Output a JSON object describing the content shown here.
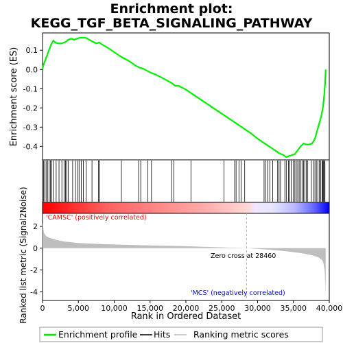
{
  "title_line1": "Enrichment plot:",
  "title_line2": "KEGG_TGF_BETA_SIGNALING_PATHWAY",
  "es_panel": {
    "ylabel": "Enrichment score (ES)",
    "y_ticks": [
      "0.1",
      "0.0",
      "-0.1",
      "-0.2",
      "-0.3",
      "-0.4"
    ]
  },
  "metric_panel": {
    "ylabel": "Ranked list metric (Signal2Noise)",
    "y_ticks": [
      "2",
      "0",
      "-2",
      "-4"
    ],
    "positive_label": "'CAMSC' (positively correlated)",
    "negative_label": "'MCS' (negatively correlated)",
    "zero_cross_label": "Zero cross at 28460"
  },
  "x_axis": {
    "xlabel": "Rank in Ordered Dataset",
    "x_ticks": [
      "0",
      "5,000",
      "10,000",
      "15,000",
      "20,000",
      "25,000",
      "30,000",
      "35,000",
      "40,000"
    ]
  },
  "legend": {
    "profile": "Enrichment profile",
    "hits": "Hits",
    "metric": "Ranking metric scores"
  },
  "colors": {
    "profile": "#00ee00",
    "hits": "#000000",
    "metric_fill": "#bebebe",
    "positive": "#ff0000",
    "negative": "#0000ff",
    "zero_cross_line": "#aaaaaa"
  },
  "chart_data": {
    "type": "line",
    "n_genes": 39500,
    "zero_cross": 28460,
    "xlim": [
      0,
      40000
    ],
    "es_ylim": [
      -0.47,
      0.19
    ],
    "metric_ylim": [
      -4.8,
      3.2
    ],
    "enrichment_profile": {
      "x": [
        0,
        100,
        300,
        600,
        900,
        1200,
        1500,
        1800,
        2200,
        2600,
        3000,
        3300,
        3600,
        4000,
        4400,
        4800,
        5200,
        5600,
        6000,
        6500,
        7000,
        7500,
        7900,
        8300,
        9000,
        10000,
        11000,
        12000,
        13000,
        13500,
        14000,
        14500,
        15000,
        16000,
        17000,
        18000,
        18500,
        19000,
        20000,
        21000,
        22000,
        23000,
        24000,
        25000,
        26000,
        27000,
        28000,
        29000,
        30000,
        31000,
        32000,
        33000,
        33600,
        34000,
        34400,
        34800,
        35200,
        35600,
        36000,
        36400,
        36800,
        37200,
        37600,
        38000,
        38300,
        38600,
        38900,
        39100,
        39200,
        39300,
        39400,
        39500
      ],
      "y": [
        0.0,
        0.02,
        0.04,
        0.07,
        0.1,
        0.13,
        0.15,
        0.14,
        0.135,
        0.135,
        0.14,
        0.145,
        0.155,
        0.16,
        0.155,
        0.16,
        0.165,
        0.165,
        0.165,
        0.155,
        0.145,
        0.135,
        0.14,
        0.13,
        0.115,
        0.09,
        0.065,
        0.045,
        0.02,
        0.01,
        0.005,
        -0.005,
        -0.015,
        -0.03,
        -0.05,
        -0.07,
        -0.085,
        -0.085,
        -0.105,
        -0.13,
        -0.155,
        -0.18,
        -0.205,
        -0.23,
        -0.255,
        -0.28,
        -0.305,
        -0.33,
        -0.36,
        -0.385,
        -0.41,
        -0.435,
        -0.445,
        -0.455,
        -0.45,
        -0.445,
        -0.44,
        -0.42,
        -0.4,
        -0.385,
        -0.39,
        -0.39,
        -0.385,
        -0.36,
        -0.32,
        -0.28,
        -0.24,
        -0.2,
        -0.17,
        -0.13,
        -0.08,
        0.0
      ]
    },
    "hits": [
      150,
      300,
      500,
      700,
      900,
      1100,
      1300,
      1500,
      1900,
      2300,
      2700,
      3000,
      3200,
      3400,
      3600,
      4200,
      4600,
      4900,
      5100,
      5400,
      5700,
      6100,
      6900,
      7800,
      8000,
      11000,
      13400,
      13700,
      14700,
      15200,
      18000,
      18300,
      20700,
      25300,
      26800,
      27000,
      27400,
      27700,
      28200,
      30900,
      31100,
      31400,
      31700,
      32100,
      32800,
      33000,
      33200,
      33800,
      34000,
      34300,
      34500,
      34700,
      35000,
      35200,
      35400,
      35600,
      35800,
      36000,
      36200,
      36400,
      36600,
      36800,
      37000,
      37500,
      37800,
      38000,
      38200,
      38400,
      38600,
      38800,
      39000,
      39100,
      39200,
      39300,
      39400
    ],
    "ranking_metric": {
      "x": [
        0,
        200,
        500,
        1000,
        2000,
        3000,
        5000,
        8000,
        12000,
        16000,
        20000,
        24000,
        27000,
        28460,
        30000,
        32000,
        34000,
        36000,
        37000,
        38000,
        38500,
        39000,
        39200,
        39350,
        39450,
        39500
      ],
      "y": [
        2.3,
        1.4,
        1.1,
        0.95,
        0.75,
        0.62,
        0.48,
        0.38,
        0.3,
        0.24,
        0.18,
        0.1,
        0.04,
        0.0,
        -0.06,
        -0.16,
        -0.28,
        -0.45,
        -0.56,
        -0.72,
        -0.85,
        -1.1,
        -1.4,
        -2.0,
        -3.3,
        -4.5
      ]
    }
  }
}
